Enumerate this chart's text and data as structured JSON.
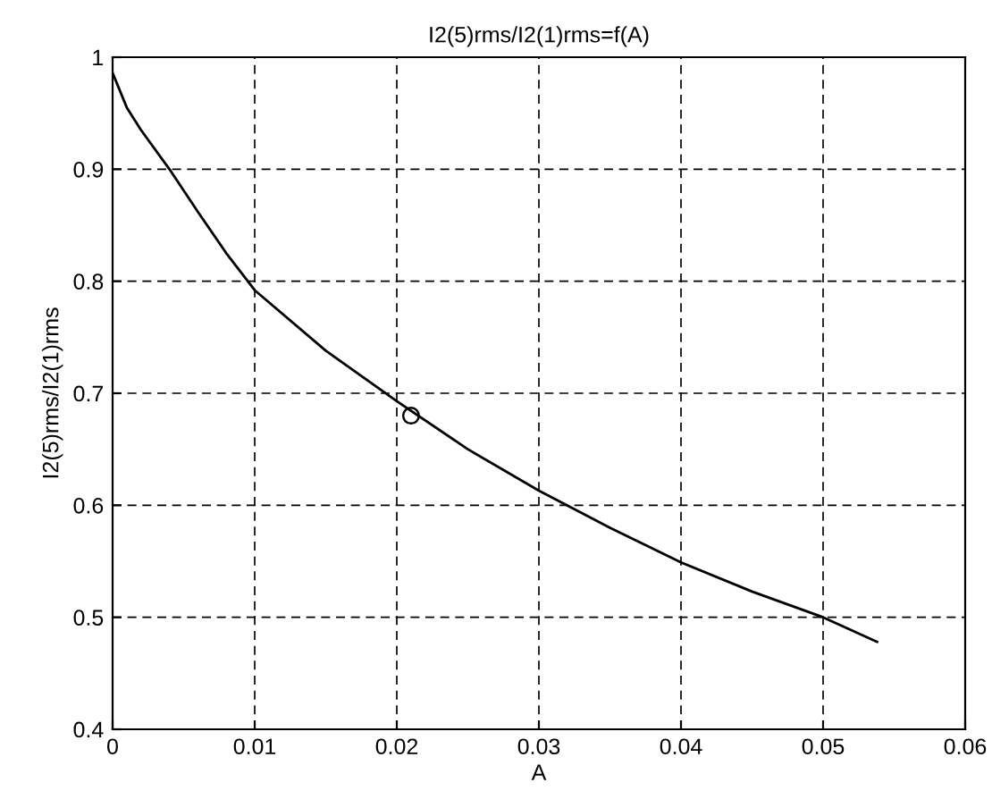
{
  "chart_data": {
    "type": "line",
    "title": "I2(5)rms/I2(1)rms=f(A)",
    "xlabel": "A",
    "ylabel": "I2(5)rms/I2(1)rms",
    "series": [
      {
        "color": "#000000",
        "marker": "none",
        "x": [
          0,
          0.001,
          0.002,
          0.004,
          0.006,
          0.008,
          0.01,
          0.015,
          0.02,
          0.025,
          0.03,
          0.035,
          0.04,
          0.045,
          0.05,
          0.0538
        ],
        "values": [
          0.986,
          0.955,
          0.935,
          0.9,
          0.862,
          0.825,
          0.792,
          0.738,
          0.693,
          0.65,
          0.613,
          0.58,
          0.549,
          0.523,
          0.5,
          0.478
        ]
      },
      {
        "type": "scatter",
        "color": "#000000",
        "marker": "circle",
        "x": [
          0.021
        ],
        "values": [
          0.68
        ]
      }
    ],
    "xlim": [
      0,
      0.06
    ],
    "xticks": [
      0,
      0.01,
      0.02,
      0.03,
      0.04,
      0.05,
      0.06
    ],
    "ylim": [
      0.4,
      1
    ],
    "yticks": [
      0.4,
      0.5,
      0.6,
      0.7,
      0.8,
      0.9,
      1
    ],
    "grid": true,
    "line_style": "solid"
  }
}
